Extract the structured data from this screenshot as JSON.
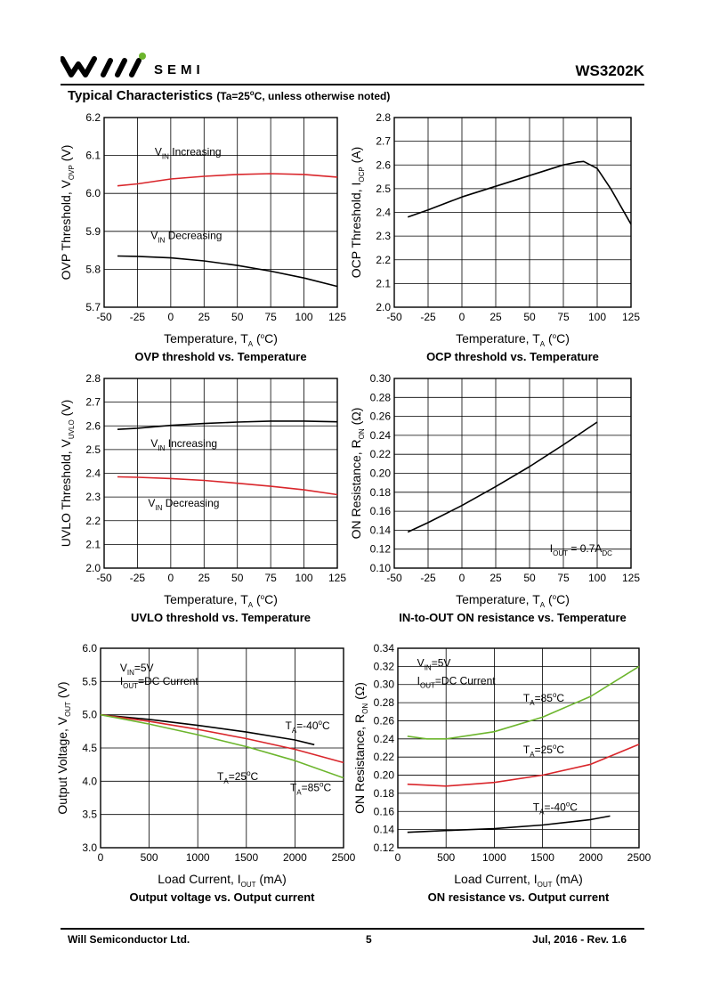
{
  "header": {
    "logo_text": "SEMI",
    "part_number": "WS3202K"
  },
  "section": {
    "title": "Typical Characteristics",
    "condition": "(Ta=25oC, unless otherwise noted)"
  },
  "footer": {
    "company": "Will Semiconductor Ltd.",
    "page": "5",
    "revision": "Jul, 2016 - Rev. 1.6"
  },
  "colors": {
    "black": "#000000",
    "red": "#d9262b",
    "green": "#6cb52d"
  },
  "chart_data": [
    {
      "type": "line",
      "caption": "OVP threshold vs. Temperature",
      "xlabel": "Temperature, TA (oC)",
      "ylabel": "OVP Threshold, VOVP (V)",
      "xlim": [
        -50,
        125
      ],
      "ylim": [
        5.7,
        6.2
      ],
      "xticks": [
        -50,
        -25,
        0,
        25,
        50,
        75,
        100,
        125
      ],
      "yticks": [
        5.7,
        5.8,
        5.9,
        6.0,
        6.1,
        6.2
      ],
      "grid": true,
      "series": [
        {
          "name": "VIN Increasing",
          "color": "#d9262b",
          "x": [
            -40,
            -25,
            0,
            25,
            50,
            75,
            100,
            125
          ],
          "y": [
            6.02,
            6.025,
            6.038,
            6.045,
            6.05,
            6.052,
            6.05,
            6.043
          ]
        },
        {
          "name": "VIN Decreasing",
          "color": "#000000",
          "x": [
            -40,
            -25,
            0,
            25,
            50,
            75,
            100,
            125
          ],
          "y": [
            5.835,
            5.834,
            5.83,
            5.822,
            5.81,
            5.795,
            5.777,
            5.755
          ]
        }
      ],
      "annotations": [
        {
          "text": "VIN Increasing",
          "x": -12,
          "y": 6.1
        },
        {
          "text": "VIN Decreasing",
          "x": -15,
          "y": 5.88
        }
      ]
    },
    {
      "type": "line",
      "caption": "OCP threshold vs. Temperature",
      "xlabel": "Temperature, TA (oC)",
      "ylabel": "OCP Threshold, IOCP (A)",
      "xlim": [
        -50,
        125
      ],
      "ylim": [
        2.0,
        2.8
      ],
      "xticks": [
        -50,
        -25,
        0,
        25,
        50,
        75,
        100,
        125
      ],
      "yticks": [
        2.0,
        2.1,
        2.2,
        2.3,
        2.4,
        2.5,
        2.6,
        2.7,
        2.8
      ],
      "grid": true,
      "series": [
        {
          "name": "",
          "color": "#000000",
          "x": [
            -40,
            -25,
            0,
            25,
            50,
            75,
            85,
            90,
            100,
            110,
            125
          ],
          "y": [
            2.38,
            2.41,
            2.465,
            2.51,
            2.555,
            2.6,
            2.612,
            2.615,
            2.585,
            2.5,
            2.35
          ]
        }
      ],
      "annotations": []
    },
    {
      "type": "line",
      "caption": "UVLO threshold vs. Temperature",
      "xlabel": "Temperature, TA (oC)",
      "ylabel": "UVLO Threshold, VUVLO (V)",
      "xlim": [
        -50,
        125
      ],
      "ylim": [
        2.0,
        2.8
      ],
      "xticks": [
        -50,
        -25,
        0,
        25,
        50,
        75,
        100,
        125
      ],
      "yticks": [
        2.0,
        2.1,
        2.2,
        2.3,
        2.4,
        2.5,
        2.6,
        2.7,
        2.8
      ],
      "grid": true,
      "series": [
        {
          "name": "VIN Increasing",
          "color": "#000000",
          "x": [
            -40,
            -25,
            0,
            25,
            50,
            75,
            100,
            125
          ],
          "y": [
            2.585,
            2.59,
            2.602,
            2.61,
            2.616,
            2.62,
            2.62,
            2.617
          ]
        },
        {
          "name": "VIN Decreasing",
          "color": "#d9262b",
          "x": [
            -40,
            -25,
            0,
            25,
            50,
            75,
            100,
            125
          ],
          "y": [
            2.385,
            2.383,
            2.378,
            2.37,
            2.358,
            2.345,
            2.33,
            2.31
          ]
        }
      ],
      "annotations": [
        {
          "text": "VIN Increasing",
          "x": -15,
          "y": 2.51
        },
        {
          "text": "VIN Decreasing",
          "x": -17,
          "y": 2.26
        }
      ]
    },
    {
      "type": "line",
      "caption": "IN-to-OUT ON resistance vs. Temperature",
      "xlabel": "Temperature, TA (oC)",
      "ylabel": "ON Resistance, RON (Ω)",
      "xlim": [
        -50,
        125
      ],
      "ylim": [
        0.1,
        0.3
      ],
      "xticks": [
        -50,
        -25,
        0,
        25,
        50,
        75,
        100,
        125
      ],
      "yticks": [
        0.1,
        0.12,
        0.14,
        0.16,
        0.18,
        0.2,
        0.22,
        0.24,
        0.26,
        0.28,
        0.3
      ],
      "grid": true,
      "series": [
        {
          "name": "",
          "color": "#000000",
          "x": [
            -40,
            -25,
            0,
            25,
            50,
            75,
            100
          ],
          "y": [
            0.138,
            0.148,
            0.166,
            0.186,
            0.207,
            0.23,
            0.254
          ]
        }
      ],
      "annotations": [
        {
          "text": "IOUT = 0.7ADC",
          "x": 65,
          "y": 0.117
        }
      ]
    },
    {
      "type": "line",
      "caption": "Output voltage vs. Output current",
      "xlabel": "Load Current, IOUT (mA)",
      "ylabel": "Output Voltage, VOUT (V)",
      "xlim": [
        0,
        2500
      ],
      "ylim": [
        3.0,
        6.0
      ],
      "xticks": [
        0,
        500,
        1000,
        1500,
        2000,
        2500
      ],
      "yticks": [
        3.0,
        3.5,
        4.0,
        4.5,
        5.0,
        5.5,
        6.0
      ],
      "grid": true,
      "series": [
        {
          "name": "TA=-40oC",
          "color": "#000000",
          "x": [
            0,
            500,
            1000,
            1500,
            2000,
            2200
          ],
          "y": [
            5.0,
            4.93,
            4.84,
            4.74,
            4.62,
            4.55
          ]
        },
        {
          "name": "TA=25oC",
          "color": "#d9262b",
          "x": [
            0,
            500,
            1000,
            1500,
            2000,
            2500
          ],
          "y": [
            5.0,
            4.9,
            4.78,
            4.64,
            4.48,
            4.28
          ]
        },
        {
          "name": "TA=85oC",
          "color": "#6cb52d",
          "x": [
            0,
            500,
            1000,
            1500,
            2000,
            2500
          ],
          "y": [
            5.0,
            4.86,
            4.7,
            4.52,
            4.31,
            4.05
          ]
        }
      ],
      "annotations": [
        {
          "text": "VIN=5V",
          "x": 200,
          "y": 5.65
        },
        {
          "text": "IOUT=DC Current",
          "x": 200,
          "y": 5.45
        },
        {
          "text": "TA=-40oC",
          "x": 1900,
          "y": 4.78
        },
        {
          "text": "TA=25oC",
          "x": 1200,
          "y": 4.02
        },
        {
          "text": "TA=85oC",
          "x": 1950,
          "y": 3.85
        }
      ]
    },
    {
      "type": "line",
      "caption": "ON resistance vs. Output current",
      "xlabel": "Load Current, IOUT (mA)",
      "ylabel": "ON Resistance, RON (Ω)",
      "xlim": [
        0,
        2500
      ],
      "ylim": [
        0.12,
        0.34
      ],
      "xticks": [
        0,
        500,
        1000,
        1500,
        2000,
        2500
      ],
      "yticks": [
        0.12,
        0.14,
        0.16,
        0.18,
        0.2,
        0.22,
        0.24,
        0.26,
        0.28,
        0.3,
        0.32,
        0.34
      ],
      "grid": true,
      "series": [
        {
          "name": "TA=85oC",
          "color": "#6cb52d",
          "x": [
            100,
            300,
            500,
            1000,
            1500,
            2000,
            2500
          ],
          "y": [
            0.243,
            0.24,
            0.24,
            0.248,
            0.264,
            0.287,
            0.32
          ]
        },
        {
          "name": "TA=25oC",
          "color": "#d9262b",
          "x": [
            100,
            500,
            1000,
            1500,
            2000,
            2500
          ],
          "y": [
            0.19,
            0.188,
            0.192,
            0.2,
            0.212,
            0.234
          ]
        },
        {
          "name": "TA=-40oC",
          "color": "#000000",
          "x": [
            100,
            500,
            1000,
            1500,
            2000,
            2200
          ],
          "y": [
            0.137,
            0.139,
            0.141,
            0.145,
            0.151,
            0.155
          ]
        }
      ],
      "annotations": [
        {
          "text": "VIN=5V",
          "x": 200,
          "y": 0.32
        },
        {
          "text": "IOUT=DC Current",
          "x": 200,
          "y": 0.3
        },
        {
          "text": "TA=85oC",
          "x": 1300,
          "y": 0.281
        },
        {
          "text": "TA=25oC",
          "x": 1300,
          "y": 0.224
        },
        {
          "text": "TA=-40oC",
          "x": 1400,
          "y": 0.161
        }
      ]
    }
  ]
}
